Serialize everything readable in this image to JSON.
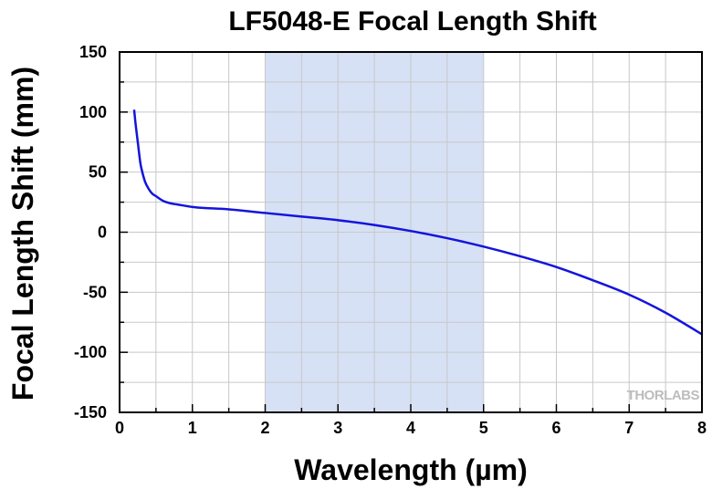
{
  "chart_data": {
    "type": "line",
    "title": "LF5048-E Focal Length Shift",
    "xlabel": "Wavelength (µm)",
    "ylabel": "Focal Length Shift (mm)",
    "xlim": [
      0,
      8
    ],
    "ylim": [
      -150,
      150
    ],
    "x_ticks": [
      "0",
      "1",
      "2",
      "3",
      "4",
      "5",
      "6",
      "7",
      "8"
    ],
    "y_ticks": [
      "150",
      "100",
      "50",
      "0",
      "-50",
      "-100",
      "-150"
    ],
    "grid": true,
    "highlight_band": {
      "x_range": [
        2,
        5
      ],
      "color": "#d6e1f5"
    },
    "watermark": "THORLABS",
    "line_color": "#1414dc",
    "series": [
      {
        "x": [
          0.2,
          0.22,
          0.25,
          0.28,
          0.3,
          0.35,
          0.4,
          0.45,
          0.5,
          0.6,
          0.7,
          0.8,
          1.0,
          1.2,
          1.5,
          2.0,
          2.5,
          3.0,
          3.5,
          4.0,
          4.5,
          5.0,
          5.5,
          6.0,
          6.5,
          7.0,
          7.5,
          8.0
        ],
        "y": [
          102,
          90,
          75,
          60,
          53,
          42,
          36,
          32,
          30,
          26,
          24,
          23,
          21,
          20,
          19,
          16,
          13,
          10,
          6,
          1,
          -5,
          -12,
          -20,
          -29,
          -40,
          -52,
          -67,
          -85
        ]
      }
    ]
  }
}
